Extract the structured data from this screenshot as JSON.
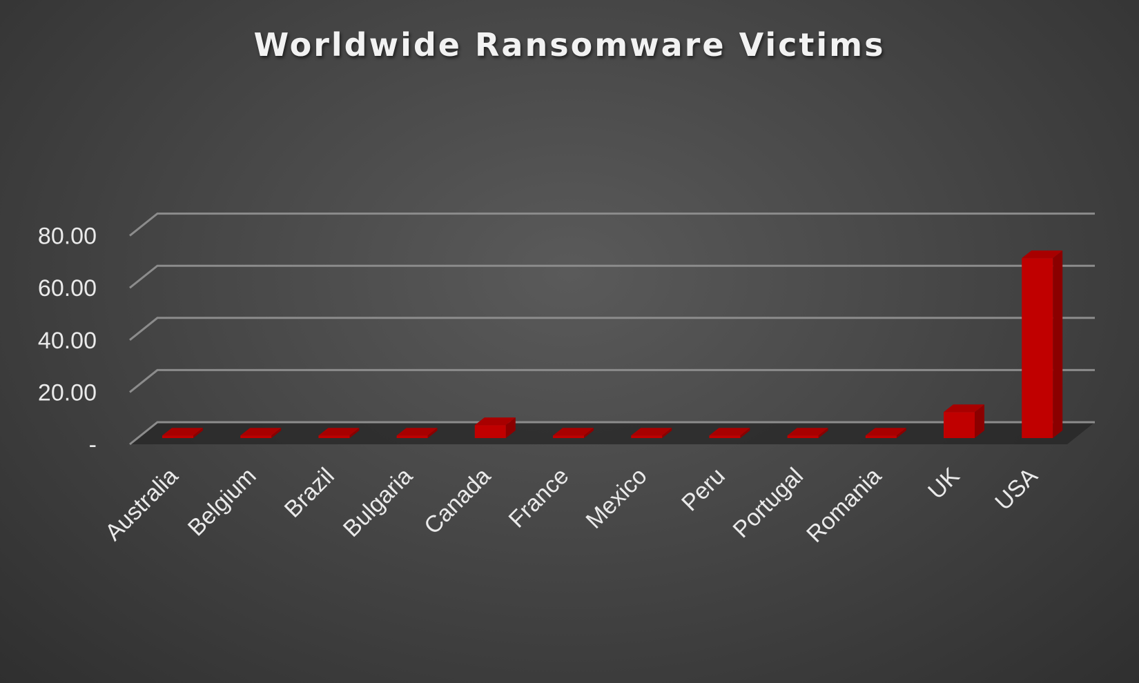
{
  "chart_data": {
    "type": "bar",
    "title": "Worldwide Ransomware Victims",
    "categories": [
      "Australia",
      "Belgium",
      "Brazil",
      "Bulgaria",
      "Canada",
      "France",
      "Mexico",
      "Peru",
      "Portugal",
      "Romania",
      "UK",
      "USA"
    ],
    "values": [
      1,
      1,
      1,
      1,
      5,
      1,
      1,
      1,
      1,
      1,
      10,
      69
    ],
    "ylim": [
      0,
      80
    ],
    "yticks": [
      0,
      20,
      40,
      60,
      80
    ],
    "ytick_labels": [
      "-",
      "20.00",
      "40.00",
      "60.00",
      "80.00"
    ],
    "grid": true,
    "style": "3d-column",
    "colors": {
      "bar_front": "#c00000",
      "bar_side": "#8b0000",
      "bar_top": "#a80000",
      "grid": "#8c8c8c",
      "text": "#eaeaea"
    }
  }
}
